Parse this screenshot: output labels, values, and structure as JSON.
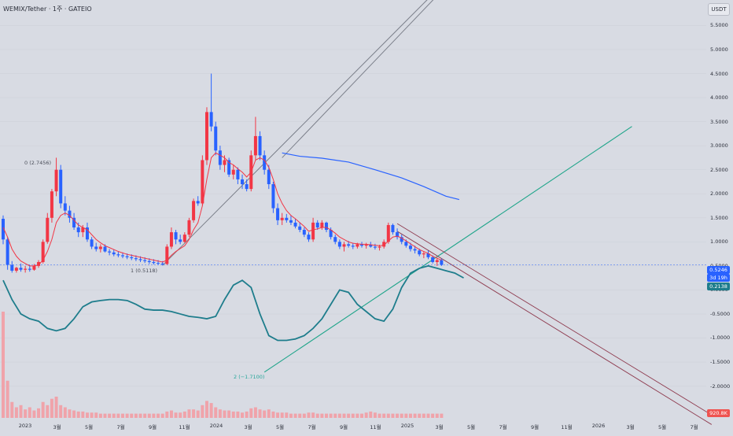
{
  "header": {
    "symbol": "WEMIX/Tether · 1주 · GATEIO",
    "currency_button": "USDT"
  },
  "price_tags": {
    "last": "0.5246",
    "countdown": "3d 19h",
    "oscillator": "0.2138",
    "volume": "920.8K"
  },
  "fib_labels": {
    "top": "0 (2.7456)",
    "bottom": "1 (0.5118)",
    "green": "2 (−1.7100)"
  },
  "colors": {
    "up": "#f23645",
    "down": "#2962ff",
    "ema": "#f23645",
    "ma": "#2962ff",
    "oscillator": "#1e7d8c",
    "channel": "#7b7f8a",
    "green_line": "#1fa58a",
    "down_channel": "#8e3a4e",
    "price_line": "#2962ff"
  },
  "chart_data": {
    "type": "candlestick",
    "y_axis": {
      "ticks": [
        "5.5000",
        "5.0000",
        "4.5000",
        "4.0000",
        "3.5000",
        "3.0000",
        "2.5000",
        "2.0000",
        "1.5000",
        "1.0000",
        "0.5000",
        "0.0000",
        "-0.5000",
        "-1.0000",
        "-1.5000",
        "-2.0000"
      ],
      "range": [
        -2.4,
        5.9
      ],
      "unit": "USDT"
    },
    "x_axis": {
      "ticks": [
        "2023",
        "3월",
        "5월",
        "7월",
        "9월",
        "11월",
        "2024",
        "3월",
        "5월",
        "7월",
        "9월",
        "11월",
        "2025",
        "3월",
        "5월",
        "7월",
        "9월",
        "11월",
        "2026",
        "3월",
        "5월",
        "7월"
      ]
    },
    "candles": [
      {
        "o": 1.48,
        "h": 1.55,
        "l": 0.95,
        "c": 1.05
      },
      {
        "o": 1.05,
        "h": 1.1,
        "l": 0.42,
        "c": 0.52
      },
      {
        "o": 0.52,
        "h": 0.6,
        "l": 0.36,
        "c": 0.4
      },
      {
        "o": 0.4,
        "h": 0.48,
        "l": 0.36,
        "c": 0.46
      },
      {
        "o": 0.46,
        "h": 0.55,
        "l": 0.38,
        "c": 0.42
      },
      {
        "o": 0.42,
        "h": 0.5,
        "l": 0.36,
        "c": 0.44
      },
      {
        "o": 0.44,
        "h": 0.52,
        "l": 0.38,
        "c": 0.42
      },
      {
        "o": 0.42,
        "h": 0.54,
        "l": 0.4,
        "c": 0.5
      },
      {
        "o": 0.5,
        "h": 0.62,
        "l": 0.46,
        "c": 0.58
      },
      {
        "o": 0.58,
        "h": 1.05,
        "l": 0.55,
        "c": 1.0
      },
      {
        "o": 1.0,
        "h": 1.6,
        "l": 0.96,
        "c": 1.5
      },
      {
        "o": 1.5,
        "h": 2.1,
        "l": 1.4,
        "c": 2.05
      },
      {
        "o": 2.05,
        "h": 2.75,
        "l": 1.95,
        "c": 2.5
      },
      {
        "o": 2.5,
        "h": 2.6,
        "l": 1.7,
        "c": 1.8
      },
      {
        "o": 1.8,
        "h": 1.95,
        "l": 1.55,
        "c": 1.65
      },
      {
        "o": 1.65,
        "h": 1.75,
        "l": 1.4,
        "c": 1.5
      },
      {
        "o": 1.5,
        "h": 1.6,
        "l": 1.25,
        "c": 1.3
      },
      {
        "o": 1.3,
        "h": 1.4,
        "l": 1.1,
        "c": 1.2
      },
      {
        "o": 1.2,
        "h": 1.35,
        "l": 1.1,
        "c": 1.3
      },
      {
        "o": 1.3,
        "h": 1.4,
        "l": 1.0,
        "c": 1.05
      },
      {
        "o": 1.05,
        "h": 1.1,
        "l": 0.85,
        "c": 0.9
      },
      {
        "o": 0.9,
        "h": 0.98,
        "l": 0.8,
        "c": 0.85
      },
      {
        "o": 0.85,
        "h": 0.95,
        "l": 0.78,
        "c": 0.9
      },
      {
        "o": 0.9,
        "h": 0.95,
        "l": 0.78,
        "c": 0.8
      },
      {
        "o": 0.8,
        "h": 0.85,
        "l": 0.72,
        "c": 0.78
      },
      {
        "o": 0.78,
        "h": 0.84,
        "l": 0.7,
        "c": 0.74
      },
      {
        "o": 0.74,
        "h": 0.8,
        "l": 0.68,
        "c": 0.72
      },
      {
        "o": 0.72,
        "h": 0.78,
        "l": 0.66,
        "c": 0.7
      },
      {
        "o": 0.7,
        "h": 0.76,
        "l": 0.64,
        "c": 0.68
      },
      {
        "o": 0.68,
        "h": 0.74,
        "l": 0.62,
        "c": 0.66
      },
      {
        "o": 0.66,
        "h": 0.72,
        "l": 0.6,
        "c": 0.64
      },
      {
        "o": 0.64,
        "h": 0.7,
        "l": 0.58,
        "c": 0.62
      },
      {
        "o": 0.62,
        "h": 0.68,
        "l": 0.56,
        "c": 0.6
      },
      {
        "o": 0.6,
        "h": 0.66,
        "l": 0.54,
        "c": 0.58
      },
      {
        "o": 0.58,
        "h": 0.64,
        "l": 0.53,
        "c": 0.56
      },
      {
        "o": 0.56,
        "h": 0.62,
        "l": 0.52,
        "c": 0.55
      },
      {
        "o": 0.55,
        "h": 0.6,
        "l": 0.51,
        "c": 0.54
      },
      {
        "o": 0.54,
        "h": 0.95,
        "l": 0.52,
        "c": 0.9
      },
      {
        "o": 0.9,
        "h": 1.3,
        "l": 0.85,
        "c": 1.2
      },
      {
        "o": 1.2,
        "h": 1.25,
        "l": 0.95,
        "c": 1.05
      },
      {
        "o": 1.05,
        "h": 1.15,
        "l": 0.95,
        "c": 1.0
      },
      {
        "o": 1.0,
        "h": 1.2,
        "l": 0.98,
        "c": 1.15
      },
      {
        "o": 1.15,
        "h": 1.5,
        "l": 1.1,
        "c": 1.45
      },
      {
        "o": 1.45,
        "h": 1.9,
        "l": 1.4,
        "c": 1.85
      },
      {
        "o": 1.85,
        "h": 1.95,
        "l": 1.75,
        "c": 1.8
      },
      {
        "o": 1.8,
        "h": 2.8,
        "l": 1.75,
        "c": 2.7
      },
      {
        "o": 2.7,
        "h": 3.8,
        "l": 2.6,
        "c": 3.7
      },
      {
        "o": 3.7,
        "h": 4.5,
        "l": 3.3,
        "c": 3.4
      },
      {
        "o": 3.4,
        "h": 3.5,
        "l": 2.8,
        "c": 2.9
      },
      {
        "o": 2.9,
        "h": 3.0,
        "l": 2.5,
        "c": 2.6
      },
      {
        "o": 2.6,
        "h": 2.8,
        "l": 2.45,
        "c": 2.7
      },
      {
        "o": 2.7,
        "h": 2.75,
        "l": 2.35,
        "c": 2.4
      },
      {
        "o": 2.4,
        "h": 2.6,
        "l": 2.3,
        "c": 2.5
      },
      {
        "o": 2.5,
        "h": 2.55,
        "l": 2.2,
        "c": 2.3
      },
      {
        "o": 2.3,
        "h": 2.4,
        "l": 2.1,
        "c": 2.2
      },
      {
        "o": 2.2,
        "h": 2.3,
        "l": 2.05,
        "c": 2.1
      },
      {
        "o": 2.1,
        "h": 2.9,
        "l": 2.05,
        "c": 2.8
      },
      {
        "o": 2.8,
        "h": 3.6,
        "l": 2.7,
        "c": 3.2
      },
      {
        "o": 3.2,
        "h": 3.3,
        "l": 2.7,
        "c": 2.8
      },
      {
        "o": 2.8,
        "h": 2.9,
        "l": 2.4,
        "c": 2.5
      },
      {
        "o": 2.5,
        "h": 2.6,
        "l": 2.1,
        "c": 2.2
      },
      {
        "o": 2.2,
        "h": 2.25,
        "l": 1.6,
        "c": 1.7
      },
      {
        "o": 1.7,
        "h": 1.8,
        "l": 1.35,
        "c": 1.45
      },
      {
        "o": 1.45,
        "h": 1.6,
        "l": 1.35,
        "c": 1.5
      },
      {
        "o": 1.5,
        "h": 1.58,
        "l": 1.4,
        "c": 1.45
      },
      {
        "o": 1.45,
        "h": 1.55,
        "l": 1.35,
        "c": 1.4
      },
      {
        "o": 1.4,
        "h": 1.48,
        "l": 1.28,
        "c": 1.32
      },
      {
        "o": 1.32,
        "h": 1.4,
        "l": 1.2,
        "c": 1.25
      },
      {
        "o": 1.25,
        "h": 1.3,
        "l": 1.1,
        "c": 1.15
      },
      {
        "o": 1.15,
        "h": 1.2,
        "l": 1.0,
        "c": 1.05
      },
      {
        "o": 1.05,
        "h": 1.5,
        "l": 1.0,
        "c": 1.4
      },
      {
        "o": 1.4,
        "h": 1.45,
        "l": 1.25,
        "c": 1.3
      },
      {
        "o": 1.3,
        "h": 1.45,
        "l": 1.25,
        "c": 1.4
      },
      {
        "o": 1.4,
        "h": 1.42,
        "l": 1.2,
        "c": 1.25
      },
      {
        "o": 1.25,
        "h": 1.3,
        "l": 1.05,
        "c": 1.1
      },
      {
        "o": 1.1,
        "h": 1.15,
        "l": 0.95,
        "c": 1.0
      },
      {
        "o": 1.0,
        "h": 1.05,
        "l": 0.85,
        "c": 0.9
      },
      {
        "o": 0.9,
        "h": 1.0,
        "l": 0.8,
        "c": 0.95
      },
      {
        "o": 0.95,
        "h": 1.02,
        "l": 0.88,
        "c": 0.92
      },
      {
        "o": 0.92,
        "h": 0.98,
        "l": 0.85,
        "c": 0.9
      },
      {
        "o": 0.9,
        "h": 0.98,
        "l": 0.86,
        "c": 0.95
      },
      {
        "o": 0.95,
        "h": 1.0,
        "l": 0.88,
        "c": 0.92
      },
      {
        "o": 0.92,
        "h": 0.98,
        "l": 0.86,
        "c": 0.94
      },
      {
        "o": 0.94,
        "h": 1.0,
        "l": 0.88,
        "c": 0.9
      },
      {
        "o": 0.9,
        "h": 0.96,
        "l": 0.84,
        "c": 0.88
      },
      {
        "o": 0.88,
        "h": 0.94,
        "l": 0.82,
        "c": 0.9
      },
      {
        "o": 0.9,
        "h": 1.05,
        "l": 0.86,
        "c": 1.0
      },
      {
        "o": 1.0,
        "h": 1.4,
        "l": 0.96,
        "c": 1.35
      },
      {
        "o": 1.35,
        "h": 1.38,
        "l": 1.15,
        "c": 1.2
      },
      {
        "o": 1.2,
        "h": 1.28,
        "l": 1.05,
        "c": 1.1
      },
      {
        "o": 1.1,
        "h": 1.15,
        "l": 0.95,
        "c": 1.0
      },
      {
        "o": 1.0,
        "h": 1.05,
        "l": 0.88,
        "c": 0.92
      },
      {
        "o": 0.92,
        "h": 0.98,
        "l": 0.8,
        "c": 0.85
      },
      {
        "o": 0.85,
        "h": 0.92,
        "l": 0.76,
        "c": 0.82
      },
      {
        "o": 0.82,
        "h": 0.86,
        "l": 0.7,
        "c": 0.74
      },
      {
        "o": 0.74,
        "h": 0.8,
        "l": 0.66,
        "c": 0.76
      },
      {
        "o": 0.76,
        "h": 0.82,
        "l": 0.64,
        "c": 0.68
      },
      {
        "o": 0.68,
        "h": 0.72,
        "l": 0.55,
        "c": 0.58
      },
      {
        "o": 0.58,
        "h": 0.66,
        "l": 0.5,
        "c": 0.62
      },
      {
        "o": 0.62,
        "h": 0.65,
        "l": 0.5,
        "c": 0.52
      }
    ],
    "ema_line": [
      1.3,
      1.1,
      0.85,
      0.7,
      0.6,
      0.55,
      0.5,
      0.5,
      0.52,
      0.62,
      0.8,
      1.05,
      1.4,
      1.55,
      1.6,
      1.55,
      1.45,
      1.35,
      1.3,
      1.25,
      1.15,
      1.05,
      0.98,
      0.92,
      0.88,
      0.84,
      0.8,
      0.77,
      0.74,
      0.72,
      0.7,
      0.68,
      0.66,
      0.64,
      0.62,
      0.6,
      0.58,
      0.62,
      0.72,
      0.8,
      0.86,
      0.92,
      1.05,
      1.25,
      1.4,
      1.75,
      2.3,
      2.75,
      2.85,
      2.8,
      2.75,
      2.65,
      2.6,
      2.52,
      2.45,
      2.35,
      2.45,
      2.7,
      2.75,
      2.7,
      2.55,
      2.3,
      2.0,
      1.8,
      1.65,
      1.55,
      1.48,
      1.4,
      1.32,
      1.22,
      1.25,
      1.27,
      1.3,
      1.3,
      1.25,
      1.18,
      1.1,
      1.05,
      1.0,
      0.97,
      0.96,
      0.95,
      0.95,
      0.94,
      0.93,
      0.92,
      0.93,
      1.02,
      1.1,
      1.12,
      1.08,
      1.02,
      0.96,
      0.9,
      0.84,
      0.8,
      0.76,
      0.7,
      0.66,
      0.62
    ],
    "ma_line": [
      {
        "x": 63,
        "y": 2.85
      },
      {
        "x": 67,
        "y": 2.78
      },
      {
        "x": 72,
        "y": 2.74
      },
      {
        "x": 78,
        "y": 2.66
      },
      {
        "x": 84,
        "y": 2.5
      },
      {
        "x": 90,
        "y": 2.33
      },
      {
        "x": 95,
        "y": 2.15
      },
      {
        "x": 100,
        "y": 1.95
      },
      {
        "x": 103,
        "y": 1.88
      }
    ],
    "oscillator": [
      0.2,
      -0.2,
      -0.5,
      -0.6,
      -0.65,
      -0.8,
      -0.85,
      -0.8,
      -0.6,
      -0.35,
      -0.25,
      -0.22,
      -0.2,
      -0.2,
      -0.22,
      -0.3,
      -0.4,
      -0.42,
      -0.42,
      -0.45,
      -0.5,
      -0.55,
      -0.57,
      -0.6,
      -0.55,
      -0.2,
      0.1,
      0.2,
      0.05,
      -0.5,
      -0.95,
      -1.05,
      -1.05,
      -1.02,
      -0.95,
      -0.8,
      -0.6,
      -0.3,
      0.0,
      -0.05,
      -0.3,
      -0.45,
      -0.6,
      -0.65,
      -0.4,
      0.05,
      0.35,
      0.45,
      0.5,
      0.45,
      0.4,
      0.35,
      0.25
    ],
    "channel_lines": [
      {
        "from": [
          63,
          2.75
        ],
        "to": [
          130,
          9.2
        ]
      },
      {
        "from": [
          36,
          0.51
        ],
        "to": [
          130,
          9.2
        ]
      }
    ],
    "green_line": {
      "from": [
        59,
        -1.71
      ],
      "to": [
        142,
        3.4
      ]
    },
    "down_channel": [
      {
        "from": [
          89,
          1.38
        ],
        "to": [
          160,
          -2.6
        ]
      },
      {
        "from": [
          89,
          1.22
        ],
        "to": [
          160,
          -2.8
        ]
      }
    ],
    "volume": [
      1.0,
      0.35,
      0.15,
      0.1,
      0.12,
      0.08,
      0.1,
      0.07,
      0.09,
      0.15,
      0.12,
      0.18,
      0.2,
      0.12,
      0.1,
      0.08,
      0.07,
      0.06,
      0.06,
      0.05,
      0.05,
      0.05,
      0.04,
      0.04,
      0.04,
      0.04,
      0.04,
      0.04,
      0.04,
      0.04,
      0.04,
      0.04,
      0.04,
      0.04,
      0.04,
      0.04,
      0.04,
      0.06,
      0.07,
      0.05,
      0.05,
      0.06,
      0.08,
      0.08,
      0.07,
      0.12,
      0.16,
      0.14,
      0.1,
      0.08,
      0.07,
      0.07,
      0.06,
      0.06,
      0.05,
      0.06,
      0.09,
      0.1,
      0.08,
      0.07,
      0.08,
      0.06,
      0.05,
      0.05,
      0.05,
      0.04,
      0.04,
      0.04,
      0.04,
      0.05,
      0.05,
      0.04,
      0.04,
      0.04,
      0.04,
      0.04,
      0.04,
      0.04,
      0.04,
      0.04,
      0.04,
      0.04,
      0.05,
      0.06,
      0.05,
      0.04,
      0.04,
      0.04,
      0.04,
      0.04,
      0.04,
      0.04,
      0.04,
      0.04,
      0.04,
      0.04,
      0.04,
      0.04,
      0.04,
      0.04
    ],
    "last_price": 0.5246,
    "oscillator_value": 0.2138
  }
}
